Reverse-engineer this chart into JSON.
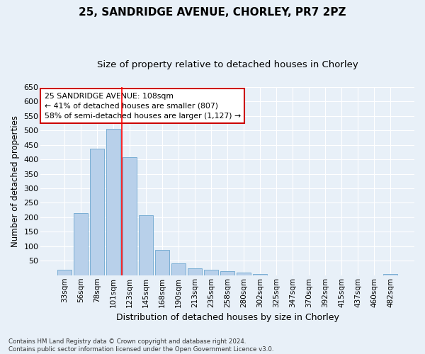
{
  "title_line1": "25, SANDRIDGE AVENUE, CHORLEY, PR7 2PZ",
  "title_line2": "Size of property relative to detached houses in Chorley",
  "xlabel": "Distribution of detached houses by size in Chorley",
  "ylabel": "Number of detached properties",
  "categories": [
    "33sqm",
    "56sqm",
    "78sqm",
    "101sqm",
    "123sqm",
    "145sqm",
    "168sqm",
    "190sqm",
    "213sqm",
    "235sqm",
    "258sqm",
    "280sqm",
    "302sqm",
    "325sqm",
    "347sqm",
    "370sqm",
    "392sqm",
    "415sqm",
    "437sqm",
    "460sqm",
    "482sqm"
  ],
  "values": [
    18,
    215,
    437,
    505,
    408,
    207,
    87,
    40,
    25,
    20,
    15,
    10,
    5,
    0,
    0,
    0,
    0,
    0,
    0,
    0,
    5
  ],
  "bar_color": "#b8d0ea",
  "bar_edge_color": "#7aaed4",
  "ylim": [
    0,
    650
  ],
  "yticks": [
    0,
    50,
    100,
    150,
    200,
    250,
    300,
    350,
    400,
    450,
    500,
    550,
    600,
    650
  ],
  "red_line_x": 3.5,
  "annotation_text": "25 SANDRIDGE AVENUE: 108sqm\n← 41% of detached houses are smaller (807)\n58% of semi-detached houses are larger (1,127) →",
  "annotation_box_facecolor": "#ffffff",
  "annotation_box_edgecolor": "#cc0000",
  "background_color": "#e8f0f8",
  "grid_color": "#ffffff",
  "title1_fontsize": 11,
  "title2_fontsize": 9.5,
  "footnote": "Contains HM Land Registry data © Crown copyright and database right 2024.\nContains public sector information licensed under the Open Government Licence v3.0."
}
